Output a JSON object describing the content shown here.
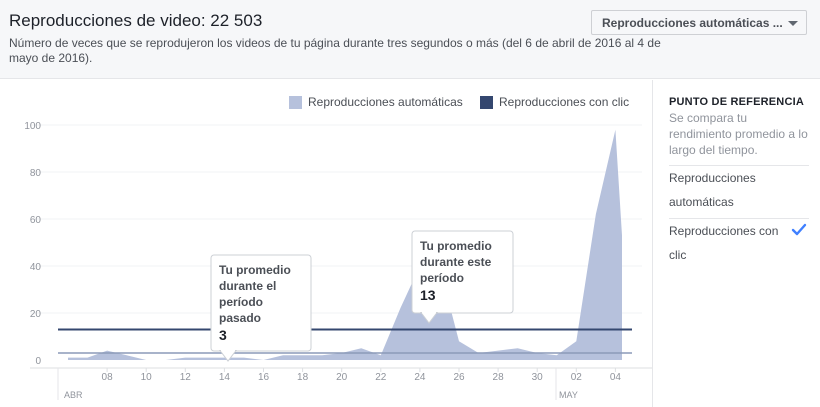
{
  "header": {
    "title": "Reproducciones de video: 22 503",
    "subtitle": "Número de veces que se reprodujeron los videos de tu página durante tres segundos o más (del 6 de abril de 2016 al 4 de mayo de 2016).",
    "dropdown_label": "Reproducciones automáticas ..."
  },
  "legend": {
    "auto": "Reproducciones automáticas",
    "click": "Reproducciones con clic"
  },
  "tooltips": {
    "past": {
      "label": "Tu promedio durante el período pasado",
      "value": "3"
    },
    "current": {
      "label": "Tu promedio durante este período",
      "value": "13"
    }
  },
  "panel": {
    "ref_title": "PUNTO DE REFERENCIA",
    "ref_desc": "Se compara tu rendimiento promedio a lo largo del tiempo.",
    "options": [
      "Reproducciones automáticas",
      "Reproducciones con clic"
    ],
    "selected": 1
  },
  "colors": {
    "auto": "#b6c1dc",
    "click": "#34476f",
    "check": "#4080ff"
  },
  "icons": {
    "check": "check-icon",
    "dropdown": "chevron-down-icon"
  },
  "chart_data": {
    "type": "area",
    "ylim": [
      0,
      100
    ],
    "yticks": [
      0,
      20,
      40,
      60,
      80,
      100
    ],
    "xticks": [
      "08",
      "10",
      "12",
      "14",
      "16",
      "18",
      "20",
      "22",
      "24",
      "26",
      "28",
      "30",
      "02",
      "04"
    ],
    "month_labels": [
      "ABR",
      "MAY"
    ],
    "series": [
      {
        "name": "Reproducciones automáticas",
        "x": [
          "2016-04-06",
          "2016-04-07",
          "2016-04-08",
          "2016-04-09",
          "2016-04-10",
          "2016-04-11",
          "2016-04-12",
          "2016-04-13",
          "2016-04-14",
          "2016-04-15",
          "2016-04-16",
          "2016-04-17",
          "2016-04-18",
          "2016-04-19",
          "2016-04-20",
          "2016-04-21",
          "2016-04-22",
          "2016-04-23",
          "2016-04-24",
          "2016-04-25",
          "2016-04-26",
          "2016-04-27",
          "2016-04-28",
          "2016-04-29",
          "2016-04-30",
          "2016-05-01",
          "2016-05-02",
          "2016-05-03",
          "2016-05-04"
        ],
        "values": [
          1,
          1,
          4,
          2,
          0,
          0,
          1,
          1,
          1,
          1,
          0,
          2,
          2,
          2,
          3,
          5,
          2,
          22,
          40,
          40,
          8,
          3,
          4,
          5,
          3,
          2,
          8,
          62,
          98
        ]
      }
    ],
    "tail_value": 53,
    "reference_lines": [
      {
        "name": "Tu promedio durante el período pasado",
        "value": 3
      },
      {
        "name": "Tu promedio durante este período",
        "value": 13
      }
    ]
  }
}
